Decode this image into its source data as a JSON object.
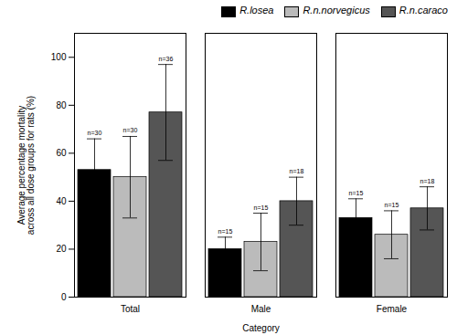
{
  "chart_data": {
    "type": "bar",
    "xlabel": "Category",
    "ylabel": "Average percentage mortality\nacross all dose groups for rats (%)",
    "categories": [
      "Total",
      "Male",
      "Female"
    ],
    "series": [
      {
        "name": "R.losea",
        "color": "#000000",
        "values": [
          53,
          20,
          33
        ],
        "errors": [
          13,
          5,
          8
        ],
        "labels": [
          "n=30",
          "n=15",
          "n=15"
        ]
      },
      {
        "name": "R.n.norvegicus",
        "color": "#bbbbbb",
        "values": [
          50,
          23,
          26
        ],
        "errors": [
          17,
          12,
          10
        ],
        "labels": [
          "n=30",
          "n=15",
          "n=15"
        ]
      },
      {
        "name": "R.n.caraco",
        "color": "#555555",
        "values": [
          77,
          40,
          37
        ],
        "errors": [
          20,
          10,
          9
        ],
        "labels": [
          "n=36",
          "n=18",
          "n=18"
        ]
      }
    ],
    "ylim": [
      0,
      110
    ],
    "yticks": [
      0,
      20,
      40,
      60,
      80,
      100
    ],
    "grid": false,
    "legend": "upper right"
  }
}
